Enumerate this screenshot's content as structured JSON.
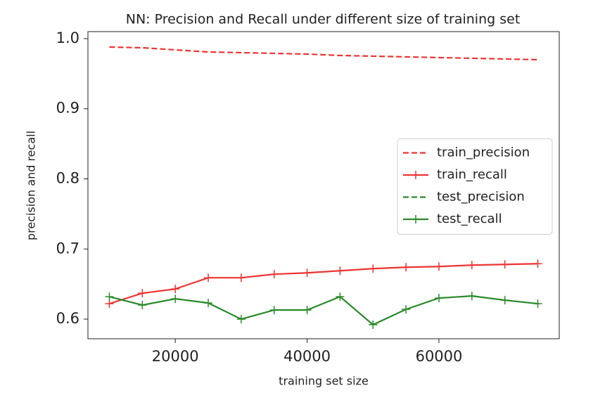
{
  "chart_data": {
    "type": "line",
    "title": "NN: Precision and Recall under different size of training set",
    "x_label": "training set size",
    "y_label": "precision and recall",
    "x": [
      10000,
      15000,
      20000,
      25000,
      30000,
      35000,
      40000,
      45000,
      50000,
      55000,
      60000,
      65000,
      70000,
      75000
    ],
    "series": [
      {
        "name": "train_precision",
        "color": "#ee3333",
        "style": "dashed",
        "marker": null,
        "values": [
          0.988,
          0.987,
          0.984,
          0.981,
          0.98,
          0.979,
          0.978,
          0.976,
          0.975,
          0.974,
          0.973,
          0.972,
          0.971,
          0.97
        ]
      },
      {
        "name": "train_recall",
        "color": "#ee3333",
        "style": "solid",
        "marker": "+",
        "values": [
          0.622,
          0.637,
          0.643,
          0.659,
          0.659,
          0.664,
          0.666,
          0.669,
          0.672,
          0.674,
          0.675,
          0.677,
          0.678,
          0.679
        ]
      },
      {
        "name": "test_precision",
        "color": "#2a8a2a",
        "style": "dashed",
        "marker": null,
        "values": [
          null,
          null,
          null,
          null,
          null,
          null,
          null,
          null,
          null,
          null,
          null,
          null,
          null,
          null
        ]
      },
      {
        "name": "test_recall",
        "color": "#2a8a2a",
        "style": "solid",
        "marker": "+",
        "values": [
          0.632,
          0.62,
          0.629,
          0.623,
          0.6,
          0.613,
          0.613,
          0.632,
          0.592,
          0.614,
          0.63,
          0.633,
          0.627,
          0.622
        ]
      }
    ],
    "xlim": [
      6750,
      78250
    ],
    "xticks": [
      20000,
      40000,
      60000
    ],
    "ylim": [
      0.572,
      1.01
    ],
    "yticks": [
      0.6,
      0.7,
      0.8,
      0.9,
      {
        "value": 1,
        "label": "1.0"
      }
    ],
    "legend": "center right"
  }
}
